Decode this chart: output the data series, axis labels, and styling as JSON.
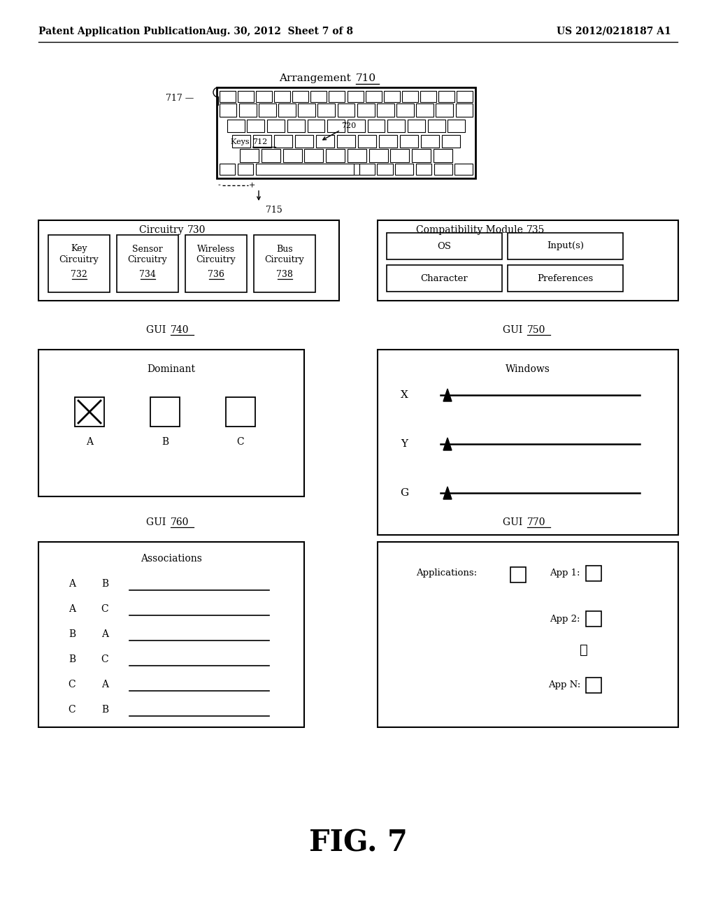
{
  "bg_color": "#ffffff",
  "header_left": "Patent Application Publication",
  "header_center": "Aug. 30, 2012  Sheet 7 of 8",
  "header_right": "US 2012/0218187 A1",
  "fig_label": "FIG. 7"
}
